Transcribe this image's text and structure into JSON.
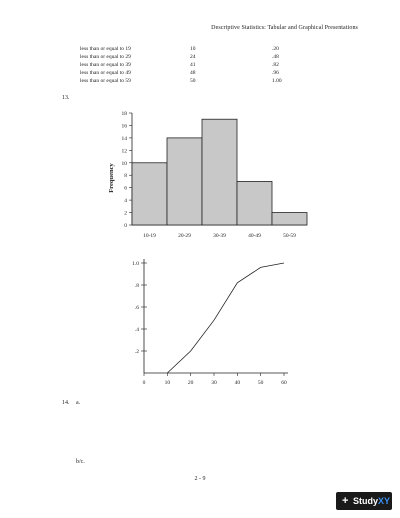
{
  "header": {
    "title": "Descriptive Statistics: Tabular and Graphical Presentations"
  },
  "cumulative_table": {
    "rows": [
      {
        "label": "less than or equal to 19",
        "frequency": "10",
        "relative": ".20"
      },
      {
        "label": "less than or equal to 29",
        "frequency": "24",
        "relative": ".48"
      },
      {
        "label": "less than or equal to 39",
        "frequency": "41",
        "relative": ".82"
      },
      {
        "label": "less than or equal to 49",
        "frequency": "48",
        "relative": ".96"
      },
      {
        "label": "less than or equal to 59",
        "frequency": "50",
        "relative": "1.00"
      }
    ]
  },
  "questions": {
    "q13": "13.",
    "q14": "14.",
    "q14a": "a.",
    "q14bc": "b/c."
  },
  "footer": {
    "page": "2 - 9"
  },
  "badge": {
    "brand_main": "Study",
    "brand_accent": "XY"
  },
  "chart_data": [
    {
      "type": "bar",
      "categories": [
        "10-19",
        "20-29",
        "30-39",
        "40-49",
        "50-59"
      ],
      "values": [
        10,
        14,
        17,
        7,
        2
      ],
      "ylabel": "Frequency",
      "ylim": [
        0,
        18
      ],
      "yticks": [
        0,
        2,
        4,
        6,
        8,
        10,
        12,
        14,
        16,
        18
      ],
      "bar_color": "#c8c8c8"
    },
    {
      "type": "line",
      "x": [
        10,
        20,
        30,
        40,
        50,
        60
      ],
      "y": [
        0,
        0.2,
        0.48,
        0.82,
        0.96,
        1.0
      ],
      "xlim": [
        0,
        60
      ],
      "ylim": [
        0,
        1.0
      ],
      "xticks": [
        "0",
        "10",
        "20",
        "30",
        "40",
        "50",
        "60"
      ],
      "yticks": [
        ".2",
        ".4",
        ".6",
        ".8",
        "1.0"
      ]
    }
  ]
}
